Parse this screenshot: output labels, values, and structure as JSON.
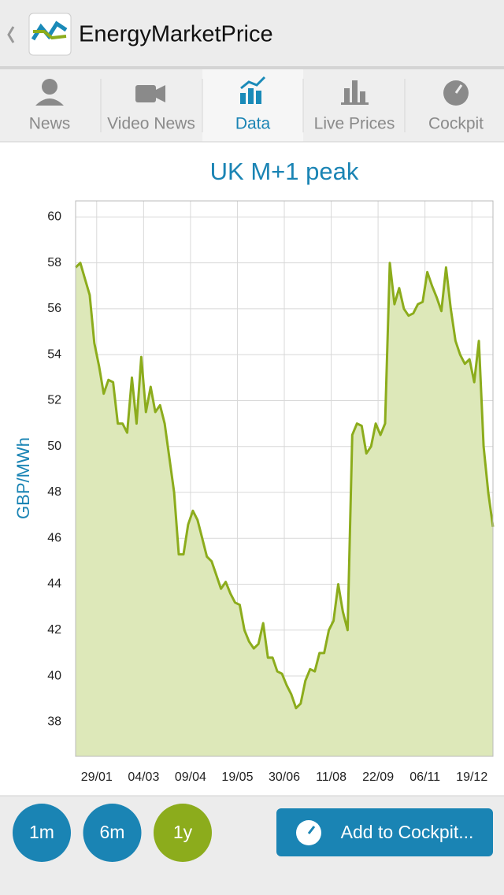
{
  "app_bar": {
    "title": "EnergyMarketPrice"
  },
  "tabs": [
    "News",
    "Video News",
    "Data",
    "Live Prices",
    "Cockpit"
  ],
  "range_buttons": [
    "1m",
    "6m",
    "1y"
  ],
  "cockpit_button": "Add to Cockpit...",
  "chart_data": {
    "type": "line",
    "title": "UK M+1 peak",
    "y_label": "GBP/MWh",
    "xlim": [
      0,
      89
    ],
    "xticks": [
      {
        "value": 4.5,
        "label": "29/01"
      },
      {
        "value": 14.5,
        "label": "04/03"
      },
      {
        "value": 24.5,
        "label": "09/04"
      },
      {
        "value": 34.5,
        "label": "19/05"
      },
      {
        "value": 44.5,
        "label": "30/06"
      },
      {
        "value": 54.5,
        "label": "11/08"
      },
      {
        "value": 64.5,
        "label": "22/09"
      },
      {
        "value": 74.5,
        "label": "06/11"
      },
      {
        "value": 84.5,
        "label": "19/12"
      }
    ],
    "ylim": [
      36.5,
      60.7
    ],
    "yticks": [
      38,
      40,
      42,
      44,
      46,
      48,
      50,
      52,
      54,
      56,
      58,
      60
    ],
    "grid": true,
    "series": [
      {
        "color": "#8cac1c",
        "fill": "#dde8b9",
        "values": [
          57.8,
          58.0,
          57.3,
          56.6,
          54.5,
          53.5,
          52.3,
          52.9,
          52.8,
          51.0,
          51.0,
          50.6,
          53.0,
          51.0,
          53.9,
          51.5,
          52.6,
          51.5,
          51.8,
          51.0,
          49.5,
          48.0,
          45.3,
          45.3,
          46.6,
          47.2,
          46.8,
          46.0,
          45.2,
          45.0,
          44.4,
          43.8,
          44.1,
          43.6,
          43.2,
          43.1,
          42.0,
          41.5,
          41.2,
          41.4,
          42.3,
          40.8,
          40.8,
          40.2,
          40.1,
          39.6,
          39.2,
          38.6,
          38.8,
          39.8,
          40.3,
          40.2,
          41.0,
          41.0,
          42.0,
          42.4,
          44.0,
          42.8,
          42.0,
          50.5,
          51.0,
          50.9,
          49.7,
          50.0,
          51.0,
          50.5,
          51.0,
          58.0,
          56.2,
          56.9,
          56.0,
          55.7,
          55.8,
          56.2,
          56.3,
          57.6,
          57.0,
          56.5,
          55.9,
          57.8,
          56.0,
          54.6,
          54.0,
          53.6,
          53.8,
          52.8,
          54.6,
          50.0,
          48.0,
          46.5
        ]
      }
    ]
  }
}
